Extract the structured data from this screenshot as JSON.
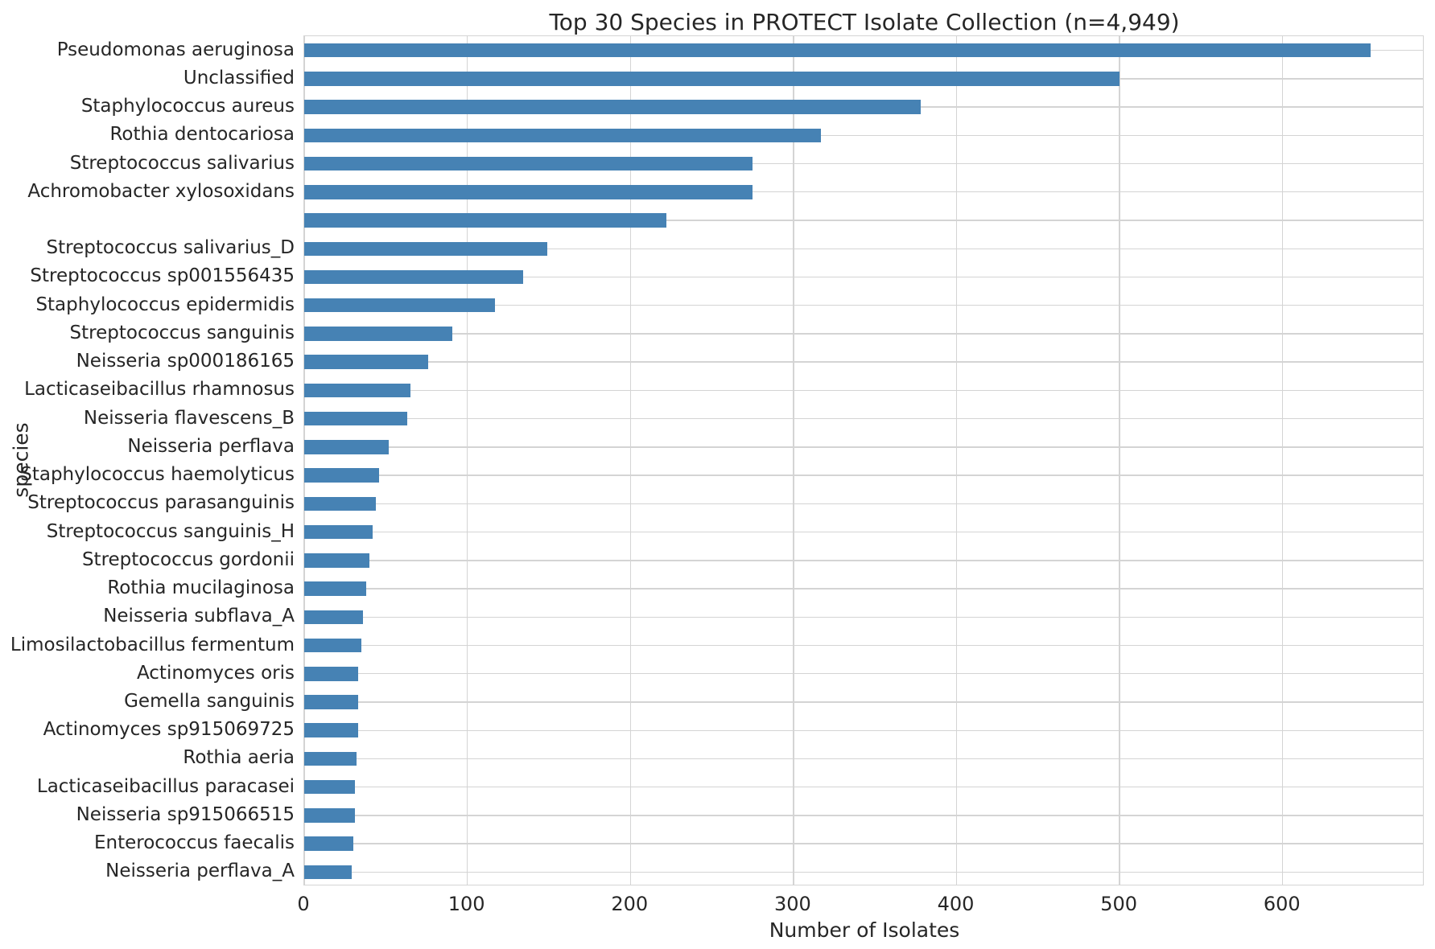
{
  "figure": {
    "background_color": "#ffffff",
    "text_color": "#262626",
    "grid_color": "#d4d4d4",
    "bar_color": "#4682b4"
  },
  "chart_data": {
    "type": "bar",
    "orientation": "horizontal",
    "title": "Top 30 Species in PROTECT Isolate Collection (n=4,949)",
    "xlabel": "Number of Isolates",
    "ylabel": "species",
    "grid": true,
    "legend": false,
    "xlim": [
      0,
      687
    ],
    "x_ticks": [
      0,
      100,
      200,
      300,
      400,
      500,
      600
    ],
    "categories": [
      "Pseudomonas aeruginosa",
      "Unclassified",
      "Staphylococcus aureus",
      "Rothia dentocariosa",
      "Streptococcus salivarius",
      "Achromobacter xylosoxidans",
      "",
      "Streptococcus salivarius_D",
      "Streptococcus sp001556435",
      "Staphylococcus epidermidis",
      "Streptococcus sanguinis",
      "Neisseria sp000186165",
      "Lacticaseibacillus rhamnosus",
      "Neisseria flavescens_B",
      "Neisseria perflava",
      "Staphylococcus haemolyticus",
      "Streptococcus parasanguinis",
      "Streptococcus sanguinis_H",
      "Streptococcus gordonii",
      "Rothia mucilaginosa",
      "Neisseria subflava_A",
      "Limosilactobacillus fermentum",
      "Actinomyces oris",
      "Gemella sanguinis",
      "Actinomyces sp915069725",
      "Rothia aeria",
      "Lacticaseibacillus paracasei",
      "Neisseria sp915066515",
      "Enterococcus faecalis",
      "Neisseria perflava_A"
    ],
    "values": [
      654,
      500,
      378,
      317,
      275,
      275,
      222,
      149,
      134,
      117,
      91,
      76,
      65,
      63,
      52,
      46,
      44,
      42,
      40,
      38,
      36,
      35,
      33,
      33,
      33,
      32,
      31,
      31,
      30,
      29
    ]
  }
}
